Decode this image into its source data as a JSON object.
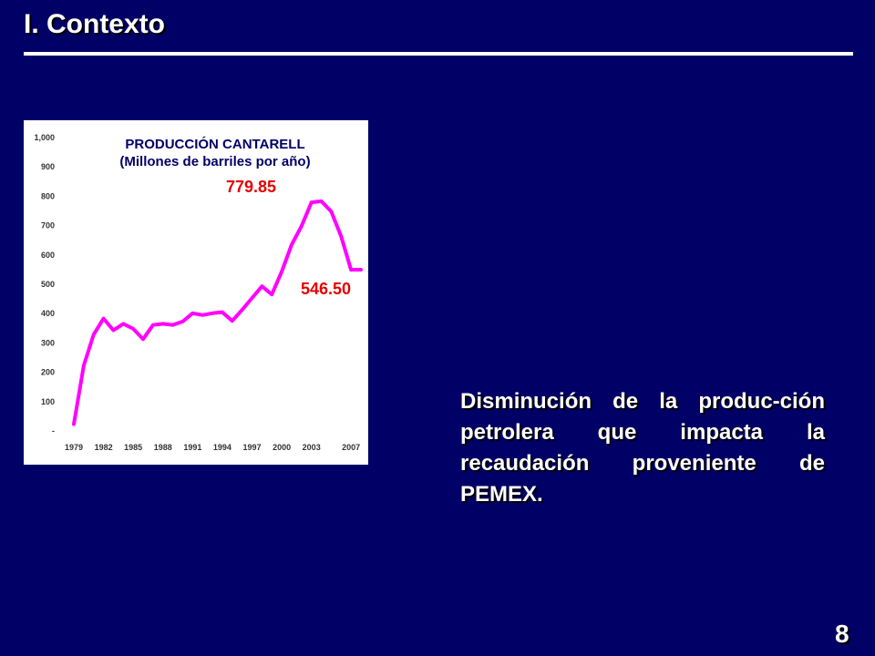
{
  "slide": {
    "title": "I. Contexto",
    "description": "Disminución de la produc-ción petrolera que impacta la recaudación proveniente de PEMEX.",
    "page_number": "8",
    "background_color": "#000066"
  },
  "chart_data": {
    "type": "line",
    "title": "PRODUCCIÓN CANTARELL",
    "subtitle": "(Millones de barriles por año)",
    "y_ticks": [
      "-",
      "100",
      "200",
      "300",
      "400",
      "500",
      "600",
      "700",
      "800",
      "900",
      "1,000"
    ],
    "x_ticks": [
      "1979",
      "1982",
      "1985",
      "1988",
      "1991",
      "1994",
      "1997",
      "2000",
      "2003",
      "2007"
    ],
    "ylim": [
      0,
      1000
    ],
    "xlim": [
      1979,
      2008
    ],
    "grid": false,
    "series": [
      {
        "color": "#ff00ff",
        "x": [
          1979,
          1980,
          1981,
          1982,
          1983,
          1984,
          1985,
          1986,
          1987,
          1988,
          1989,
          1990,
          1991,
          1992,
          1993,
          1994,
          1995,
          1996,
          1997,
          1998,
          1999,
          2000,
          2001,
          2002,
          2003,
          2004,
          2005,
          2006,
          2007,
          2008
        ],
        "values": [
          20,
          220,
          325,
          380,
          340,
          362,
          345,
          310,
          358,
          362,
          358,
          370,
          398,
          392,
          398,
          402,
          372,
          410,
          450,
          490,
          462,
          540,
          632,
          695,
          776,
          779.85,
          745,
          660,
          546.5,
          546.5
        ]
      }
    ],
    "annotations": [
      {
        "label": "779.85",
        "x": 2004,
        "value": 779.85
      },
      {
        "label": "546.50",
        "x": 2008,
        "value": 546.5
      }
    ]
  }
}
